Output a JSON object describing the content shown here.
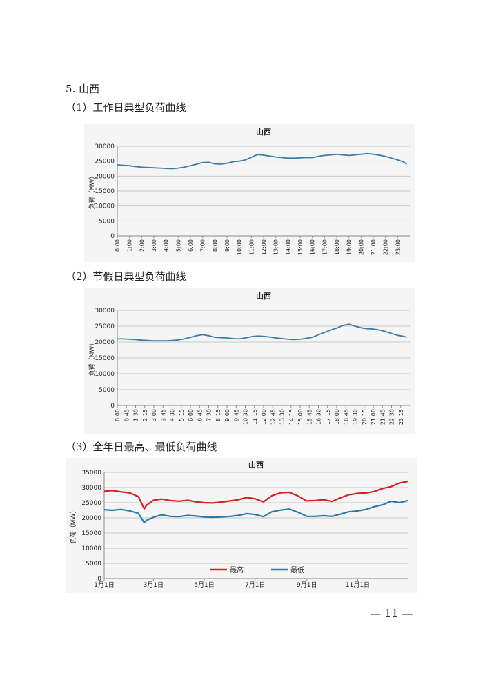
{
  "page": {
    "section_title": "5. 山西",
    "chart1_caption": "（1）工作日典型负荷曲线",
    "chart2_caption": "（2）节假日典型负荷曲线",
    "chart3_caption": "（3）全年日最高、最低负荷曲线",
    "page_number": "— 11 —"
  },
  "chart_data": [
    {
      "type": "line",
      "title": "山西",
      "ylabel": "负荷（MW）",
      "xlabel": "",
      "ylim": [
        0,
        30000
      ],
      "yticks": [
        0,
        5000,
        10000,
        15000,
        20000,
        25000,
        30000
      ],
      "x_ticks": [
        "0:00",
        "1:00",
        "2:00",
        "3:00",
        "4:00",
        "5:00",
        "6:00",
        "7:00",
        "8:00",
        "9:00",
        "10:00",
        "11:00",
        "12:00",
        "13:00",
        "14:00",
        "15:00",
        "16:00",
        "17:00",
        "18:00",
        "19:00",
        "20:00",
        "21:00",
        "22:00",
        "23:00"
      ],
      "grid": true,
      "legend": "none",
      "series": [
        {
          "color": "#3a7ea8",
          "x": [
            "0:00",
            "0:30",
            "1:00",
            "1:30",
            "2:00",
            "2:30",
            "3:00",
            "3:30",
            "4:00",
            "4:30",
            "5:00",
            "5:30",
            "6:00",
            "6:30",
            "7:00",
            "7:30",
            "8:00",
            "8:30",
            "9:00",
            "9:30",
            "10:00",
            "10:30",
            "11:00",
            "11:30",
            "12:00",
            "12:30",
            "13:00",
            "13:30",
            "14:00",
            "14:30",
            "15:00",
            "15:30",
            "16:00",
            "16:30",
            "17:00",
            "17:30",
            "18:00",
            "18:30",
            "19:00",
            "19:30",
            "20:00",
            "20:30",
            "21:00",
            "21:30",
            "22:00",
            "22:30",
            "23:00",
            "23:30",
            "23:45"
          ],
          "values": [
            23800,
            23600,
            23500,
            23200,
            23000,
            22900,
            22800,
            22700,
            22600,
            22500,
            22700,
            23000,
            23500,
            24000,
            24500,
            24600,
            24100,
            24000,
            24300,
            24800,
            25000,
            25400,
            26300,
            27200,
            27000,
            26700,
            26400,
            26200,
            26000,
            26000,
            26100,
            26200,
            26200,
            26600,
            26900,
            27100,
            27300,
            27100,
            26900,
            27100,
            27300,
            27500,
            27300,
            27000,
            26600,
            26000,
            25400,
            24700,
            24000
          ]
        }
      ]
    },
    {
      "type": "line",
      "title": "山西",
      "ylabel": "负荷（MW）",
      "xlabel": "",
      "ylim": [
        0,
        30000
      ],
      "yticks": [
        0,
        5000,
        10000,
        15000,
        20000,
        25000,
        30000
      ],
      "x_ticks": [
        "0:00",
        "0:45",
        "1:30",
        "2:15",
        "3:00",
        "3:45",
        "4:30",
        "5:15",
        "6:00",
        "6:45",
        "7:30",
        "8:15",
        "9:00",
        "9:45",
        "10:30",
        "11:15",
        "12:00",
        "12:45",
        "13:30",
        "14:15",
        "15:00",
        "15:45",
        "16:30",
        "17:15",
        "18:00",
        "18:45",
        "19:30",
        "20:15",
        "21:00",
        "21:45",
        "22:30",
        "23:15"
      ],
      "grid": true,
      "legend": "none",
      "series": [
        {
          "color": "#3a7ea8",
          "x": [
            "0:00",
            "0:30",
            "1:00",
            "1:30",
            "2:00",
            "2:30",
            "3:00",
            "3:30",
            "4:00",
            "4:30",
            "5:00",
            "5:30",
            "6:00",
            "6:30",
            "7:00",
            "7:30",
            "8:00",
            "8:30",
            "9:00",
            "9:30",
            "10:00",
            "10:30",
            "11:00",
            "11:30",
            "12:00",
            "12:30",
            "13:00",
            "13:30",
            "14:00",
            "14:30",
            "15:00",
            "15:30",
            "16:00",
            "16:30",
            "17:00",
            "17:30",
            "18:00",
            "18:30",
            "19:00",
            "19:30",
            "20:00",
            "20:30",
            "21:00",
            "21:30",
            "22:00",
            "22:30",
            "23:00",
            "23:30",
            "23:45"
          ],
          "values": [
            21000,
            21000,
            20900,
            20800,
            20600,
            20500,
            20400,
            20400,
            20400,
            20500,
            20700,
            21000,
            21500,
            22000,
            22300,
            22000,
            21500,
            21400,
            21300,
            21100,
            21000,
            21300,
            21700,
            21900,
            21800,
            21600,
            21300,
            21100,
            20900,
            20800,
            20900,
            21200,
            21500,
            22300,
            23000,
            23800,
            24400,
            25200,
            25600,
            25000,
            24500,
            24200,
            24100,
            23800,
            23300,
            22700,
            22100,
            21800,
            21500
          ]
        }
      ]
    },
    {
      "type": "line",
      "title": "山西",
      "ylabel": "负荷（MW）",
      "xlabel": "",
      "ylim": [
        0,
        35000
      ],
      "yticks": [
        0,
        5000,
        10000,
        15000,
        20000,
        25000,
        30000,
        35000
      ],
      "x_ticks": [
        "1月1日",
        "3月1日",
        "5月1日",
        "7月1日",
        "9月1日",
        "11月1日"
      ],
      "grid": true,
      "legend": "bottom",
      "series": [
        {
          "name": "最高",
          "color": "#d42020",
          "x": [
            "1月1日",
            "1月11日",
            "1月21日",
            "2月1日",
            "2月11日",
            "2月18日",
            "2月21日",
            "3月1日",
            "3月11日",
            "3月21日",
            "4月1日",
            "4月11日",
            "4月21日",
            "5月1日",
            "5月11日",
            "5月21日",
            "6月1日",
            "6月11日",
            "6月21日",
            "7月1日",
            "7月11日",
            "7月21日",
            "8月1日",
            "8月11日",
            "8月21日",
            "9月1日",
            "9月11日",
            "9月21日",
            "10月1日",
            "10月11日",
            "10月21日",
            "11月1日",
            "11月11日",
            "11月21日",
            "12月1日",
            "12月11日",
            "12月21日",
            "12月31日"
          ],
          "values": [
            28800,
            29000,
            28600,
            28200,
            27000,
            23000,
            24200,
            25800,
            26200,
            25700,
            25500,
            25800,
            25300,
            25000,
            24900,
            25200,
            25600,
            26000,
            26700,
            26300,
            25300,
            27300,
            28300,
            28400,
            27300,
            25600,
            25700,
            26000,
            25400,
            26600,
            27600,
            28100,
            28200,
            28700,
            29700,
            30300,
            31500,
            32000
          ]
        },
        {
          "name": "最低",
          "color": "#2a7aa8",
          "x": [
            "1月1日",
            "1月11日",
            "1月21日",
            "2月1日",
            "2月11日",
            "2月18日",
            "2月21日",
            "3月1日",
            "3月11日",
            "3月21日",
            "4月1日",
            "4月11日",
            "4月21日",
            "5月1日",
            "5月11日",
            "5月21日",
            "6月1日",
            "6月11日",
            "6月21日",
            "7月1日",
            "7月11日",
            "7月21日",
            "8月1日",
            "8月11日",
            "8月21日",
            "9月1日",
            "9月11日",
            "9月21日",
            "10月1日",
            "10月11日",
            "10月21日",
            "11月1日",
            "11月11日",
            "11月21日",
            "12月1日",
            "12月11日",
            "12月21日",
            "12月31日"
          ],
          "values": [
            22700,
            22500,
            22800,
            22300,
            21500,
            18400,
            19200,
            20200,
            21000,
            20500,
            20400,
            20800,
            20600,
            20300,
            20200,
            20300,
            20500,
            20800,
            21400,
            21100,
            20400,
            22000,
            22600,
            22900,
            21900,
            20500,
            20500,
            20700,
            20500,
            21200,
            22000,
            22300,
            22800,
            23700,
            24300,
            25500,
            25000,
            25700
          ]
        }
      ]
    }
  ]
}
